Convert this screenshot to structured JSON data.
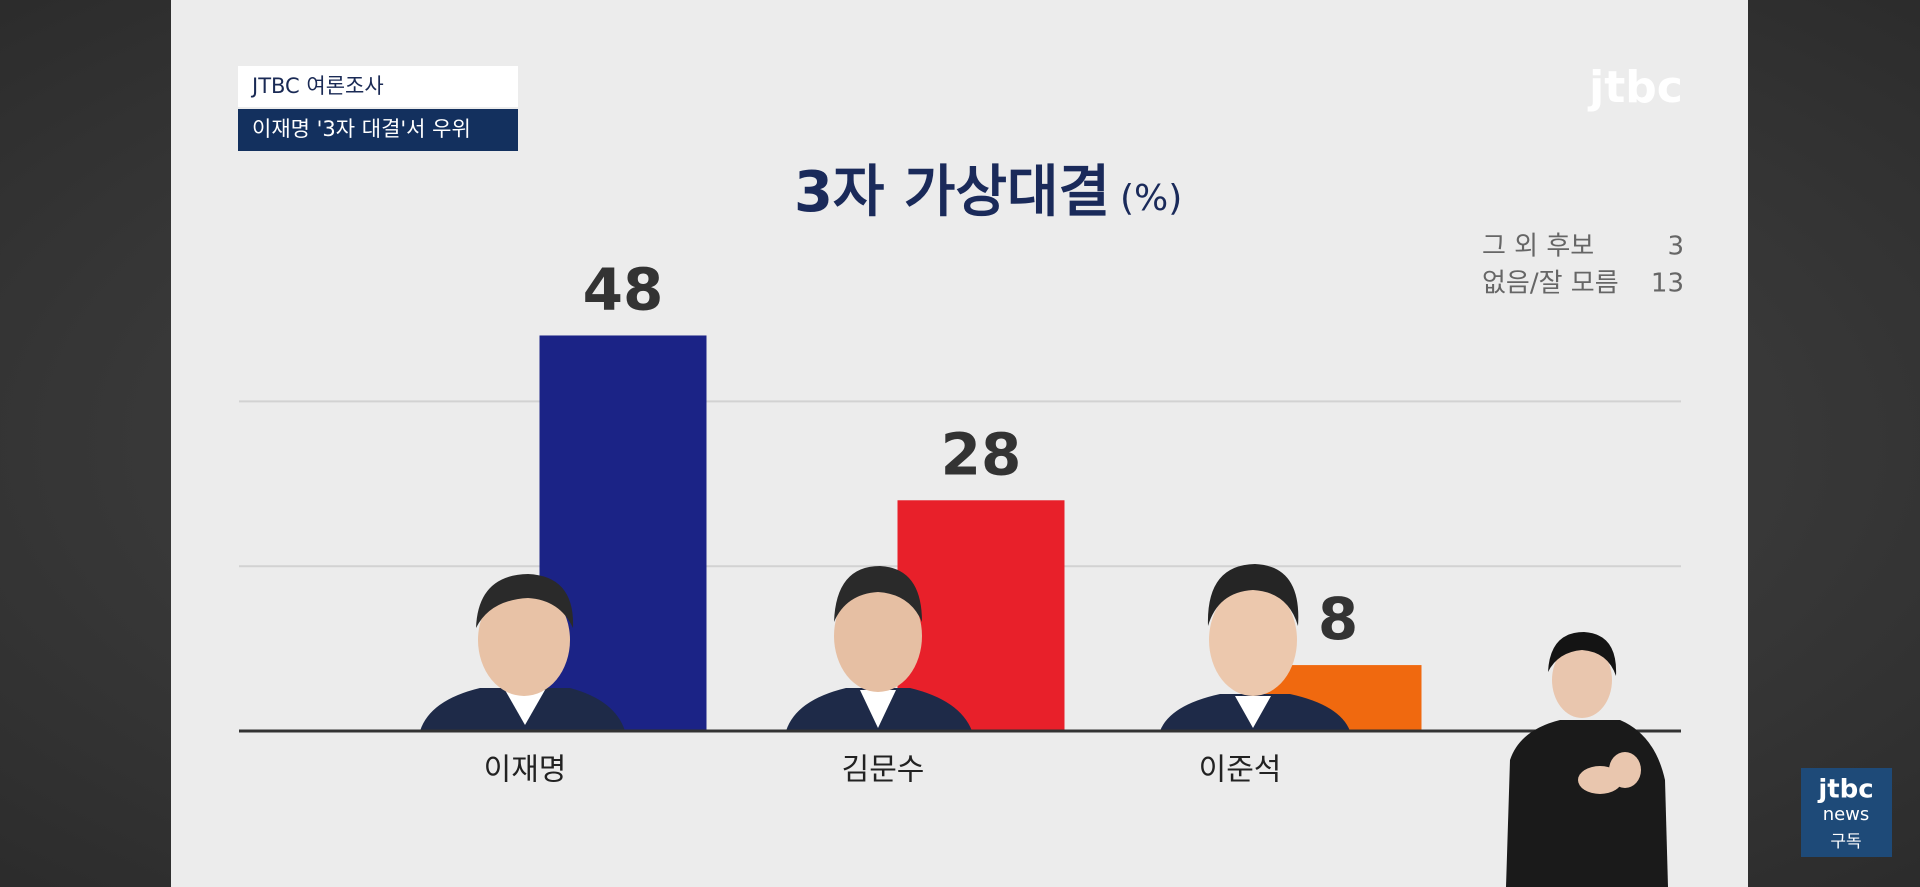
{
  "header": {
    "tag": "JTBC 여론조사",
    "headline": "이재명 '3자 대결'서 우위"
  },
  "logo": "jtbc",
  "chart_data": {
    "type": "bar",
    "title": "3자 가상대결",
    "unit": "(%)",
    "categories": [
      "이재명",
      "김문수",
      "이준석"
    ],
    "values": [
      48,
      28,
      8
    ],
    "colors": [
      "#1b2386",
      "#e8202a",
      "#f0690f"
    ],
    "ylim": [
      0,
      50
    ],
    "gridlines": [
      20,
      40
    ],
    "notes": [
      {
        "label": "그 외 후보",
        "value": 3
      },
      {
        "label": "없음/잘 모름",
        "value": 13
      }
    ]
  },
  "channel_badge": {
    "brand": "jtbc",
    "sub": "news",
    "action": "구독"
  }
}
